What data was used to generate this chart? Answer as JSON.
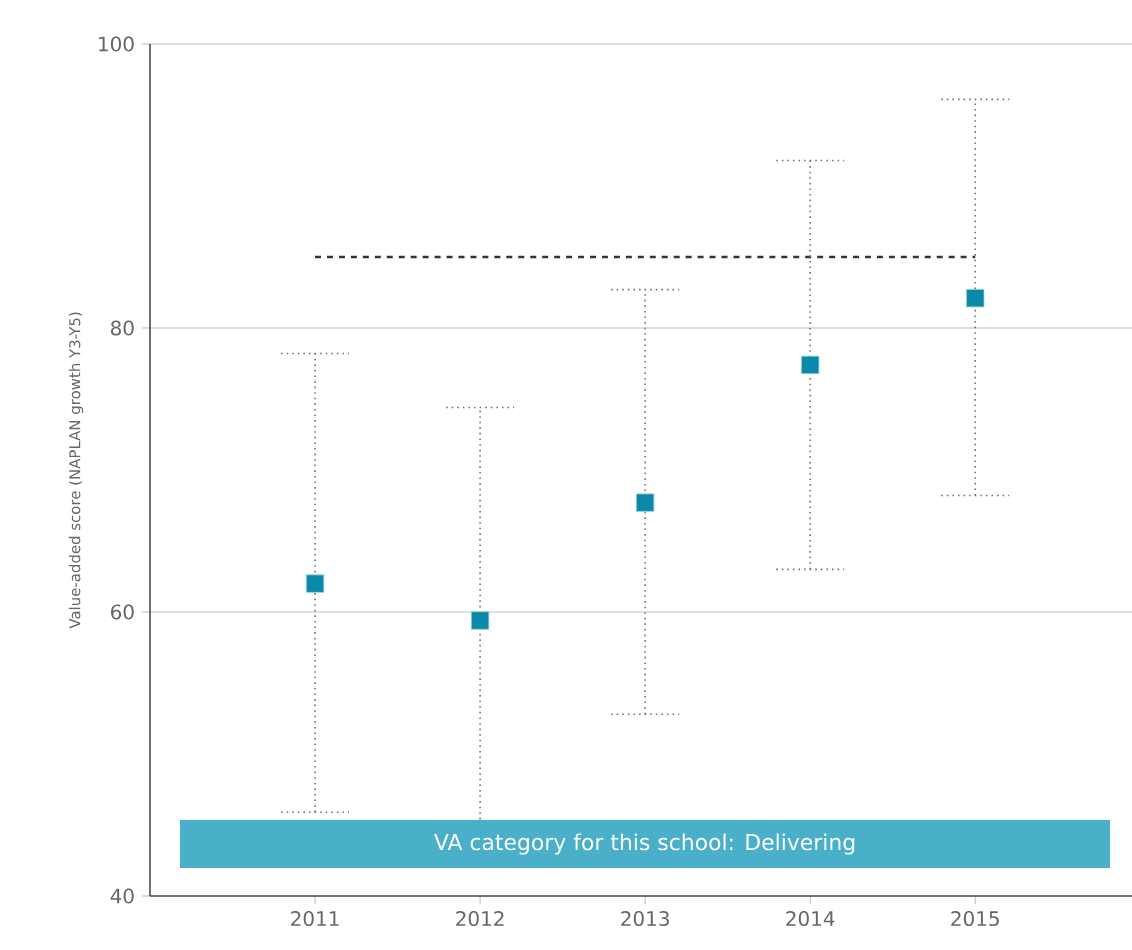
{
  "chart_data": {
    "type": "scatter",
    "ylabel": "Value-added score (NAPLAN growth Y3-Y5)",
    "categories": [
      "2011",
      "2012",
      "2013",
      "2014",
      "2015"
    ],
    "values": [
      62.0,
      59.4,
      67.7,
      77.4,
      82.1
    ],
    "errors": [
      [
        45.9,
        78.2
      ],
      [
        45.0,
        74.4
      ],
      [
        52.8,
        82.7
      ],
      [
        63.0,
        91.8
      ],
      [
        68.2,
        96.1
      ]
    ],
    "color": "#0a8aa8",
    "marker": "square",
    "ylim": [
      40,
      100
    ],
    "yticks": [
      40,
      60,
      80,
      100
    ],
    "grid": "y",
    "ref_lines": [
      {
        "axis": "y",
        "value": 85,
        "color": "#333333",
        "line_style": "dashed"
      }
    ],
    "annotations": [
      "VA category for this school: Delivering"
    ]
  }
}
